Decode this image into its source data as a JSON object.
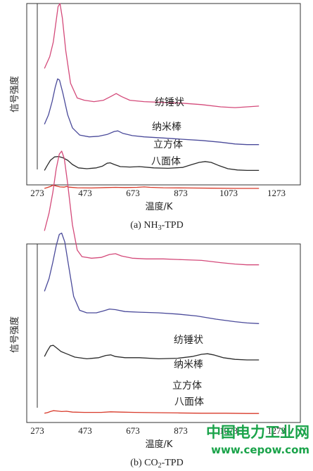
{
  "watermark": {
    "title": "中国电力工业网",
    "url": "www.cepow.com",
    "color": "#1aa34a"
  },
  "chart_data": [
    {
      "type": "line",
      "panel": "a",
      "caption": "(a) NH",
      "caption_sub": "3",
      "caption_tail": "-TPD",
      "xlabel": "温度/K",
      "ylabel": "信号强度",
      "xlim": [
        273,
        1273
      ],
      "xticks": [
        273,
        473,
        673,
        873,
        1073,
        1273
      ],
      "grid": false,
      "series": [
        {
          "name": "纺锤状",
          "color": "#d44a7a",
          "points": [
            [
              303,
              0.56
            ],
            [
              325,
              0.64
            ],
            [
              340,
              0.74
            ],
            [
              350,
              0.86
            ],
            [
              360,
              0.98
            ],
            [
              368,
              1.0
            ],
            [
              378,
              0.9
            ],
            [
              392,
              0.68
            ],
            [
              412,
              0.46
            ],
            [
              440,
              0.36
            ],
            [
              470,
              0.345
            ],
            [
              510,
              0.335
            ],
            [
              550,
              0.345
            ],
            [
              580,
              0.37
            ],
            [
              603,
              0.39
            ],
            [
              625,
              0.37
            ],
            [
              660,
              0.345
            ],
            [
              720,
              0.335
            ],
            [
              800,
              0.33
            ],
            [
              880,
              0.325
            ],
            [
              960,
              0.315
            ],
            [
              1040,
              0.3
            ],
            [
              1100,
              0.295
            ],
            [
              1150,
              0.3
            ],
            [
              1200,
              0.305
            ]
          ]
        },
        {
          "name": "纳米棒",
          "color": "#4a4a9a",
          "points": [
            [
              303,
              0.36
            ],
            [
              320,
              0.44
            ],
            [
              335,
              0.55
            ],
            [
              348,
              0.67
            ],
            [
              358,
              0.74
            ],
            [
              366,
              0.73
            ],
            [
              380,
              0.62
            ],
            [
              400,
              0.44
            ],
            [
              420,
              0.33
            ],
            [
              450,
              0.27
            ],
            [
              490,
              0.255
            ],
            [
              530,
              0.26
            ],
            [
              565,
              0.275
            ],
            [
              595,
              0.3
            ],
            [
              610,
              0.305
            ],
            [
              630,
              0.285
            ],
            [
              670,
              0.265
            ],
            [
              720,
              0.255
            ],
            [
              800,
              0.245
            ],
            [
              880,
              0.235
            ],
            [
              960,
              0.225
            ],
            [
              1040,
              0.21
            ],
            [
              1100,
              0.195
            ],
            [
              1150,
              0.19
            ],
            [
              1200,
              0.19
            ]
          ]
        },
        {
          "name": "立方体",
          "color": "#2a2a2a",
          "points": [
            [
              303,
              0.08
            ],
            [
              315,
              0.14
            ],
            [
              328,
              0.2
            ],
            [
              345,
              0.24
            ],
            [
              362,
              0.245
            ],
            [
              380,
              0.23
            ],
            [
              400,
              0.2
            ],
            [
              420,
              0.15
            ],
            [
              445,
              0.11
            ],
            [
              480,
              0.1
            ],
            [
              520,
              0.11
            ],
            [
              545,
              0.13
            ],
            [
              565,
              0.165
            ],
            [
              578,
              0.17
            ],
            [
              595,
              0.15
            ],
            [
              620,
              0.125
            ],
            [
              660,
              0.12
            ],
            [
              700,
              0.125
            ],
            [
              760,
              0.11
            ],
            [
              820,
              0.105
            ],
            [
              880,
              0.115
            ],
            [
              920,
              0.15
            ],
            [
              950,
              0.175
            ],
            [
              975,
              0.185
            ],
            [
              1000,
              0.175
            ],
            [
              1030,
              0.14
            ],
            [
              1070,
              0.1
            ],
            [
              1110,
              0.085
            ],
            [
              1150,
              0.08
            ],
            [
              1200,
              0.08
            ]
          ]
        },
        {
          "name": "八面体",
          "color": "#d83a2a",
          "points": [
            [
              303,
              0.0
            ],
            [
              315,
              0.02
            ],
            [
              328,
              0.045
            ],
            [
              338,
              0.075
            ],
            [
              350,
              0.06
            ],
            [
              368,
              0.035
            ],
            [
              385,
              0.03
            ],
            [
              395,
              0.045
            ],
            [
              405,
              0.03
            ],
            [
              440,
              0.015
            ],
            [
              500,
              0.01
            ],
            [
              560,
              0.02
            ],
            [
              600,
              0.025
            ],
            [
              640,
              0.02
            ],
            [
              690,
              0.025
            ],
            [
              720,
              0.035
            ],
            [
              745,
              0.025
            ],
            [
              800,
              0.015
            ],
            [
              900,
              0.01
            ],
            [
              1000,
              0.005
            ],
            [
              1100,
              0.0
            ],
            [
              1200,
              0.0
            ]
          ]
        }
      ]
    },
    {
      "type": "line",
      "panel": "b",
      "caption": "(b) CO",
      "caption_sub": "2",
      "caption_tail": "-TPD",
      "xlabel": "温度/K",
      "ylabel": "信号强度",
      "xlim": [
        273,
        1273
      ],
      "xticks": [
        273,
        473,
        673,
        873,
        1073,
        1273
      ],
      "grid": false,
      "series": [
        {
          "name": "纺锤状",
          "color": "#d44a7a",
          "points": [
            [
              303,
              0.46
            ],
            [
              322,
              0.58
            ],
            [
              338,
              0.72
            ],
            [
              352,
              0.88
            ],
            [
              365,
              0.98
            ],
            [
              375,
              1.0
            ],
            [
              386,
              0.95
            ],
            [
              400,
              0.78
            ],
            [
              420,
              0.5
            ],
            [
              440,
              0.33
            ],
            [
              460,
              0.285
            ],
            [
              500,
              0.275
            ],
            [
              540,
              0.28
            ],
            [
              575,
              0.3
            ],
            [
              600,
              0.305
            ],
            [
              625,
              0.29
            ],
            [
              670,
              0.275
            ],
            [
              730,
              0.27
            ],
            [
              800,
              0.27
            ],
            [
              880,
              0.265
            ],
            [
              960,
              0.26
            ],
            [
              1040,
              0.245
            ],
            [
              1100,
              0.235
            ],
            [
              1150,
              0.23
            ],
            [
              1200,
              0.23
            ]
          ]
        },
        {
          "name": "纳米棒",
          "color": "#4a4a9a",
          "points": [
            [
              303,
              0.37
            ],
            [
              322,
              0.47
            ],
            [
              338,
              0.6
            ],
            [
              352,
              0.73
            ],
            [
              365,
              0.82
            ],
            [
              375,
              0.83
            ],
            [
              388,
              0.76
            ],
            [
              405,
              0.56
            ],
            [
              425,
              0.33
            ],
            [
              450,
              0.22
            ],
            [
              480,
              0.2
            ],
            [
              520,
              0.2
            ],
            [
              550,
              0.215
            ],
            [
              575,
              0.23
            ],
            [
              600,
              0.225
            ],
            [
              640,
              0.21
            ],
            [
              700,
              0.205
            ],
            [
              780,
              0.2
            ],
            [
              860,
              0.19
            ],
            [
              940,
              0.175
            ],
            [
              1020,
              0.15
            ],
            [
              1100,
              0.13
            ],
            [
              1150,
              0.12
            ],
            [
              1200,
              0.115
            ]
          ]
        },
        {
          "name": "立方体",
          "color": "#2a2a2a",
          "points": [
            [
              303,
              0.08
            ],
            [
              315,
              0.13
            ],
            [
              328,
              0.175
            ],
            [
              340,
              0.18
            ],
            [
              355,
              0.155
            ],
            [
              372,
              0.125
            ],
            [
              395,
              0.105
            ],
            [
              430,
              0.075
            ],
            [
              480,
              0.06
            ],
            [
              530,
              0.07
            ],
            [
              560,
              0.09
            ],
            [
              580,
              0.095
            ],
            [
              600,
              0.08
            ],
            [
              640,
              0.07
            ],
            [
              700,
              0.07
            ],
            [
              780,
              0.06
            ],
            [
              860,
              0.065
            ],
            [
              920,
              0.08
            ],
            [
              960,
              0.1
            ],
            [
              985,
              0.105
            ],
            [
              1010,
              0.095
            ],
            [
              1050,
              0.07
            ],
            [
              1100,
              0.055
            ],
            [
              1150,
              0.05
            ],
            [
              1200,
              0.05
            ]
          ]
        },
        {
          "name": "八面体",
          "color": "#d83a2a",
          "points": [
            [
              303,
              -0.01
            ],
            [
              315,
              0.0
            ],
            [
              328,
              0.02
            ],
            [
              340,
              0.035
            ],
            [
              355,
              0.03
            ],
            [
              375,
              0.02
            ],
            [
              395,
              0.025
            ],
            [
              420,
              0.01
            ],
            [
              470,
              0.005
            ],
            [
              540,
              0.005
            ],
            [
              580,
              0.015
            ],
            [
              620,
              0.01
            ],
            [
              680,
              0.005
            ],
            [
              760,
              0.0
            ],
            [
              860,
              -0.005
            ],
            [
              960,
              -0.01
            ],
            [
              1060,
              -0.01
            ],
            [
              1150,
              -0.015
            ],
            [
              1200,
              -0.015
            ]
          ]
        }
      ]
    }
  ]
}
